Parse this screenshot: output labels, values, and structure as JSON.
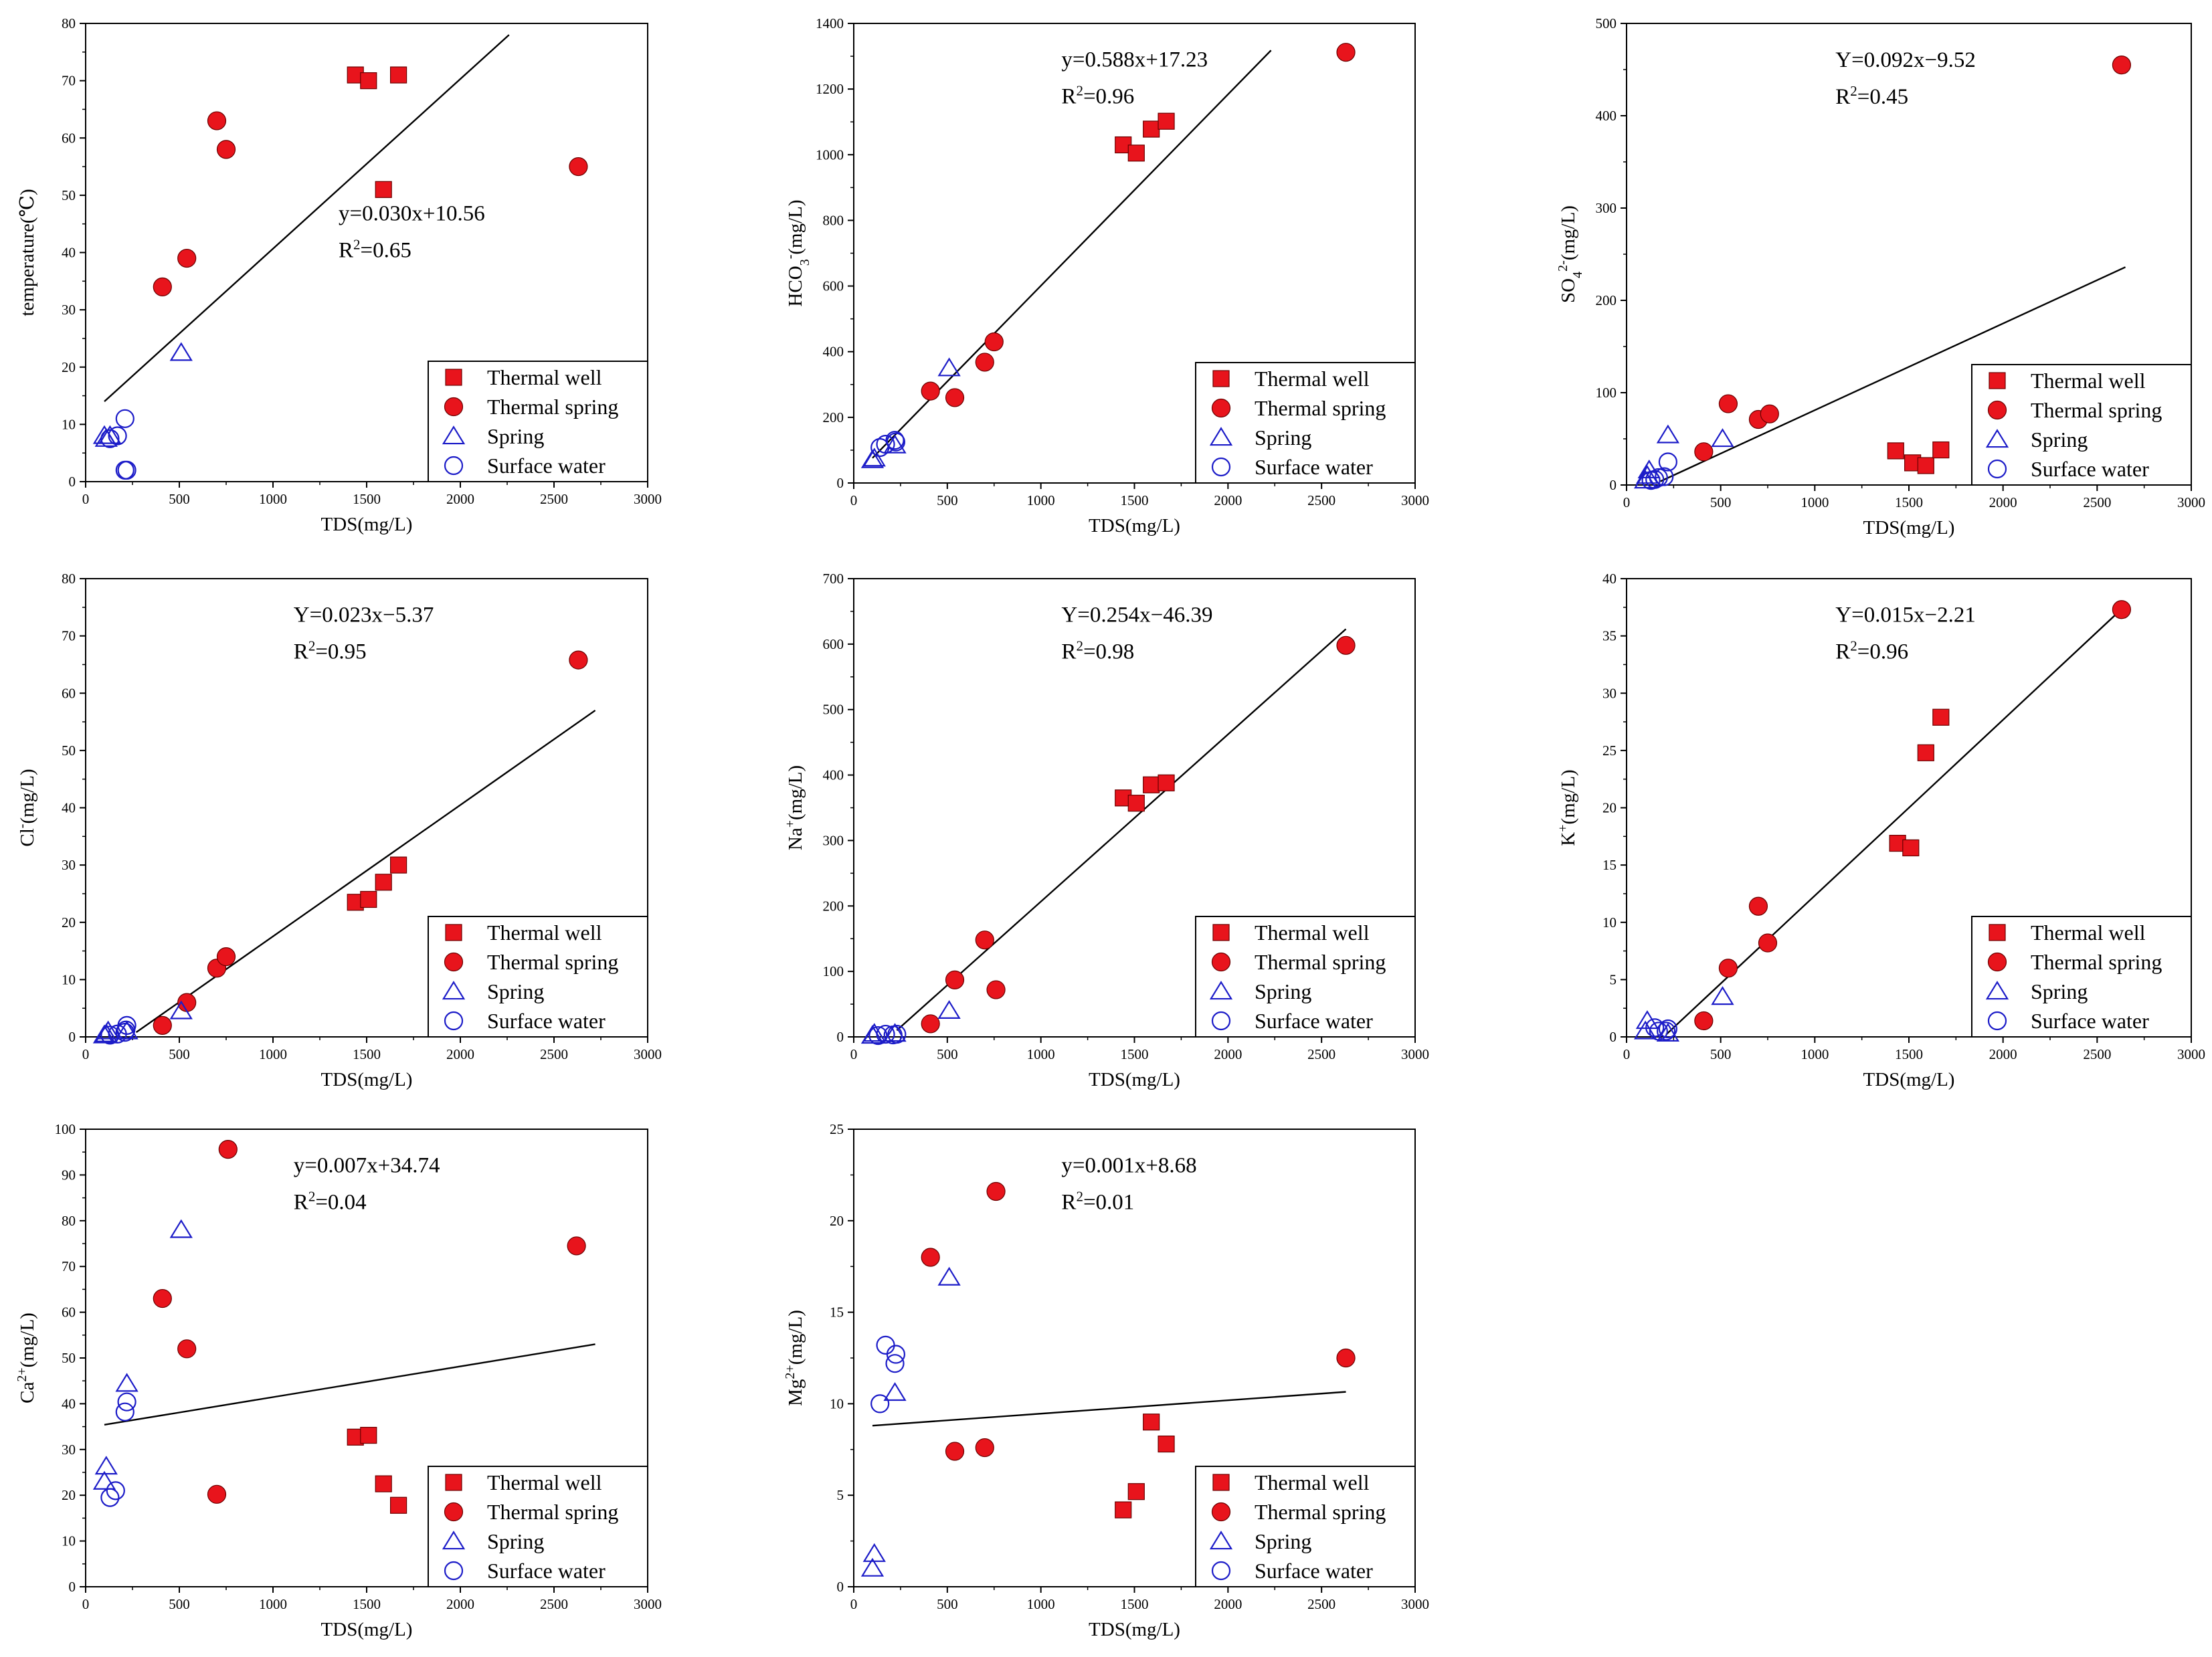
{
  "legend_labels": [
    "Thermal well",
    "Thermal spring",
    "Spring",
    "Surface water"
  ],
  "colors": {
    "thermal": "#e8141c",
    "cold": "#1c1cc8",
    "axes": "#000000"
  },
  "chart_data": [
    {
      "type": "scatter",
      "ylabel": "temperature(℃)",
      "ylabel_sup": "",
      "ylabel_tail": "",
      "xlabel": "TDS(mg/L)",
      "xlim": [
        0,
        3000
      ],
      "ylim": [
        0,
        80
      ],
      "xticks": [
        0,
        500,
        1000,
        1500,
        2000,
        2500,
        3000
      ],
      "yticks": [
        0,
        10,
        20,
        30,
        40,
        50,
        60,
        70,
        80
      ],
      "eq_line1": "y=0.030x+10.56",
      "eq_r2": "=0.65",
      "eq_pos": "middle-right",
      "fit": {
        "x": [
          100,
          2260
        ],
        "y": [
          14,
          78
        ]
      },
      "series": [
        {
          "name": "Thermal well",
          "x": [
            1440,
            1510,
            1590,
            1670
          ],
          "y": [
            71,
            70,
            51,
            71
          ]
        },
        {
          "name": "Thermal spring",
          "x": [
            410,
            540,
            700,
            750,
            2630
          ],
          "y": [
            34,
            39,
            63,
            58,
            55
          ]
        },
        {
          "name": "Spring",
          "x": [
            100,
            110,
            130,
            510
          ],
          "y": [
            8,
            7.5,
            8,
            22.5
          ]
        },
        {
          "name": "Surface water",
          "x": [
            130,
            170,
            210,
            210,
            220
          ],
          "y": [
            7.5,
            8,
            11,
            2,
            2
          ]
        }
      ]
    },
    {
      "type": "scatter",
      "ylabel": "HCO",
      "ylabel_sub": "3",
      "ylabel_sup": "-",
      "ylabel_tail": "(mg/L)",
      "xlabel": "TDS(mg/L)",
      "xlim": [
        0,
        3000
      ],
      "ylim": [
        0,
        1400
      ],
      "xticks": [
        0,
        500,
        1000,
        1500,
        2000,
        2500,
        3000
      ],
      "yticks": [
        0,
        200,
        400,
        600,
        800,
        1000,
        1200,
        1400
      ],
      "eq_line1": "y=0.588x+17.23",
      "eq_r2": "=0.96",
      "eq_pos": "top-center",
      "fit": {
        "x": [
          100,
          2230
        ],
        "y": [
          76,
          1318
        ]
      },
      "series": [
        {
          "name": "Thermal well",
          "x": [
            1440,
            1510,
            1590,
            1670
          ],
          "y": [
            1030,
            1005,
            1078,
            1102
          ]
        },
        {
          "name": "Thermal spring",
          "x": [
            410,
            540,
            700,
            750,
            2630
          ],
          "y": [
            280,
            260,
            368,
            430,
            1312
          ]
        },
        {
          "name": "Spring",
          "x": [
            100,
            110,
            220,
            510
          ],
          "y": [
            70,
            75,
            115,
            350
          ]
        },
        {
          "name": "Surface water",
          "x": [
            140,
            170,
            220,
            225
          ],
          "y": [
            108,
            118,
            130,
            125
          ]
        }
      ]
    },
    {
      "type": "scatter",
      "ylabel": "SO",
      "ylabel_sub": "4",
      "ylabel_sup": "2-",
      "ylabel_tail": "(mg/L)",
      "xlabel": "TDS(mg/L)",
      "xlim": [
        0,
        3000
      ],
      "ylim": [
        0,
        500
      ],
      "xticks": [
        0,
        500,
        1000,
        1500,
        2000,
        2500,
        3000
      ],
      "yticks": [
        0,
        100,
        200,
        300,
        400,
        500
      ],
      "eq_line1": "Y=0.092x−9.52",
      "eq_r2": "=0.45",
      "eq_pos": "top-center",
      "fit": {
        "x": [
          180,
          2650
        ],
        "y": [
          4,
          236
        ]
      },
      "series": [
        {
          "name": "Thermal well",
          "x": [
            1430,
            1520,
            1590,
            1670
          ],
          "y": [
            37,
            24,
            21,
            38
          ]
        },
        {
          "name": "Thermal spring",
          "x": [
            410,
            540,
            700,
            760,
            2630
          ],
          "y": [
            36,
            88,
            71,
            77,
            455
          ]
        },
        {
          "name": "Spring",
          "x": [
            100,
            110,
            120,
            220,
            510
          ],
          "y": [
            5,
            10,
            16,
            54,
            50
          ]
        },
        {
          "name": "Surface water",
          "x": [
            130,
            150,
            170,
            200,
            220
          ],
          "y": [
            5,
            6,
            8,
            9,
            25
          ]
        }
      ]
    },
    {
      "type": "scatter",
      "ylabel": "Cl",
      "ylabel_sub": "",
      "ylabel_sup": "-",
      "ylabel_tail": "(mg/L)",
      "xlabel": "TDS(mg/L)",
      "xlim": [
        0,
        3000
      ],
      "ylim": [
        0,
        80
      ],
      "xticks": [
        0,
        500,
        1000,
        1500,
        2000,
        2500,
        3000
      ],
      "yticks": [
        0,
        10,
        20,
        30,
        40,
        50,
        60,
        70,
        80
      ],
      "eq_line1": "Y=0.023x−5.37",
      "eq_r2": "=0.95",
      "eq_pos": "top-center",
      "fit": {
        "x": [
          270,
          2720
        ],
        "y": [
          0.8,
          57
        ]
      },
      "series": [
        {
          "name": "Thermal well",
          "x": [
            1440,
            1510,
            1590,
            1670
          ],
          "y": [
            23.5,
            24,
            27,
            30
          ]
        },
        {
          "name": "Thermal spring",
          "x": [
            410,
            540,
            700,
            750,
            2630
          ],
          "y": [
            2,
            6,
            12,
            14,
            65.8
          ]
        },
        {
          "name": "Spring",
          "x": [
            100,
            110,
            120,
            220,
            510
          ],
          "y": [
            0.3,
            0.5,
            1,
            1,
            4.5
          ]
        },
        {
          "name": "Surface water",
          "x": [
            130,
            170,
            210,
            215,
            220
          ],
          "y": [
            0.3,
            0.5,
            0.8,
            1.2,
            2
          ]
        }
      ]
    },
    {
      "type": "scatter",
      "ylabel": "Na",
      "ylabel_sub": "",
      "ylabel_sup": "+",
      "ylabel_tail": "(mg/L)",
      "xlabel": "TDS(mg/L)",
      "xlim": [
        0,
        3000
      ],
      "ylim": [
        0,
        700
      ],
      "xticks": [
        0,
        500,
        1000,
        1500,
        2000,
        2500,
        3000
      ],
      "yticks": [
        0,
        100,
        200,
        300,
        400,
        500,
        600,
        700
      ],
      "eq_line1": "Y=0.254x−46.39",
      "eq_r2": "=0.98",
      "eq_pos": "top-center",
      "fit": {
        "x": [
          230,
          2630
        ],
        "y": [
          10,
          623
        ]
      },
      "series": [
        {
          "name": "Thermal well",
          "x": [
            1440,
            1510,
            1590,
            1670
          ],
          "y": [
            365,
            357,
            385,
            388
          ]
        },
        {
          "name": "Thermal spring",
          "x": [
            410,
            540,
            700,
            760,
            2630
          ],
          "y": [
            20,
            87,
            148,
            72,
            598
          ]
        },
        {
          "name": "Spring",
          "x": [
            100,
            110,
            220,
            510
          ],
          "y": [
            2,
            5,
            5,
            40
          ]
        },
        {
          "name": "Surface water",
          "x": [
            130,
            170,
            210,
            230
          ],
          "y": [
            2,
            4,
            3,
            4
          ]
        }
      ]
    },
    {
      "type": "scatter",
      "ylabel": "K",
      "ylabel_sub": "",
      "ylabel_sup": "+",
      "ylabel_tail": "(mg/L)",
      "xlabel": "TDS(mg/L)",
      "xlim": [
        0,
        3000
      ],
      "ylim": [
        0,
        40
      ],
      "xticks": [
        0,
        500,
        1000,
        1500,
        2000,
        2500,
        3000
      ],
      "yticks": [
        0,
        5,
        10,
        15,
        20,
        25,
        30,
        35,
        40
      ],
      "eq_line1": "Y=0.015x−2.21",
      "eq_r2": "=0.96",
      "eq_pos": "top-center",
      "fit": {
        "x": [
          210,
          2640
        ],
        "y": [
          0.2,
          37.5
        ]
      },
      "series": [
        {
          "name": "Thermal well",
          "x": [
            1440,
            1510,
            1590,
            1670
          ],
          "y": [
            16.9,
            16.5,
            24.8,
            27.9
          ]
        },
        {
          "name": "Thermal spring",
          "x": [
            410,
            540,
            700,
            750,
            2630
          ],
          "y": [
            1.4,
            6,
            11.4,
            8.2,
            37.3
          ]
        },
        {
          "name": "Spring",
          "x": [
            100,
            110,
            220,
            510
          ],
          "y": [
            0.5,
            1.4,
            0.3,
            3.5
          ]
        },
        {
          "name": "Surface water",
          "x": [
            150,
            170,
            210,
            220
          ],
          "y": [
            0.8,
            0.5,
            0.5,
            0.7
          ]
        }
      ]
    },
    {
      "type": "scatter",
      "ylabel": "Ca",
      "ylabel_sub": "",
      "ylabel_sup": "2+",
      "ylabel_tail": "(mg/L)",
      "xlabel": "TDS(mg/L)",
      "xlim": [
        0,
        3000
      ],
      "ylim": [
        0,
        100
      ],
      "xticks": [
        0,
        500,
        1000,
        1500,
        2000,
        2500,
        3000
      ],
      "yticks": [
        0,
        10,
        20,
        30,
        40,
        50,
        60,
        70,
        80,
        90,
        100
      ],
      "eq_line1": "y=0.007x+34.74",
      "eq_r2": "=0.04",
      "eq_pos": "top-center",
      "fit": {
        "x": [
          100,
          2720
        ],
        "y": [
          35.4,
          53
        ]
      },
      "series": [
        {
          "name": "Thermal well",
          "x": [
            1440,
            1510,
            1590,
            1670
          ],
          "y": [
            32.7,
            33.1,
            22.5,
            17.8
          ]
        },
        {
          "name": "Thermal spring",
          "x": [
            410,
            540,
            700,
            760,
            2620
          ],
          "y": [
            63,
            52,
            20.2,
            95.6,
            74.5
          ]
        },
        {
          "name": "Spring",
          "x": [
            100,
            110,
            220,
            510
          ],
          "y": [
            23,
            26.3,
            44.4,
            78
          ]
        },
        {
          "name": "Surface water",
          "x": [
            130,
            160,
            210,
            220
          ],
          "y": [
            19.5,
            21,
            38.2,
            40.4
          ]
        }
      ]
    },
    {
      "type": "scatter",
      "ylabel": "Mg",
      "ylabel_sub": "",
      "ylabel_sup": "2+",
      "ylabel_tail": "(mg/L)",
      "xlabel": "TDS(mg/L)",
      "xlim": [
        0,
        3000
      ],
      "ylim": [
        0,
        25
      ],
      "xticks": [
        0,
        500,
        1000,
        1500,
        2000,
        2500,
        3000
      ],
      "yticks": [
        0,
        5,
        10,
        15,
        20,
        25
      ],
      "eq_line1": "y=0.001x+8.68",
      "eq_r2": "=0.01",
      "eq_pos": "top-center",
      "fit": {
        "x": [
          100,
          2630
        ],
        "y": [
          8.8,
          10.65
        ]
      },
      "series": [
        {
          "name": "Thermal well",
          "x": [
            1440,
            1510,
            1590,
            1670
          ],
          "y": [
            4.2,
            5.2,
            9,
            7.8
          ]
        },
        {
          "name": "Thermal spring",
          "x": [
            410,
            540,
            700,
            760,
            2630
          ],
          "y": [
            18,
            7.4,
            7.6,
            21.6,
            12.5
          ]
        },
        {
          "name": "Spring",
          "x": [
            100,
            110,
            220,
            510
          ],
          "y": [
            1,
            1.8,
            10.6,
            16.9
          ]
        },
        {
          "name": "Surface water",
          "x": [
            140,
            170,
            220,
            225
          ],
          "y": [
            10,
            13.2,
            12.2,
            12.7
          ]
        }
      ]
    }
  ]
}
